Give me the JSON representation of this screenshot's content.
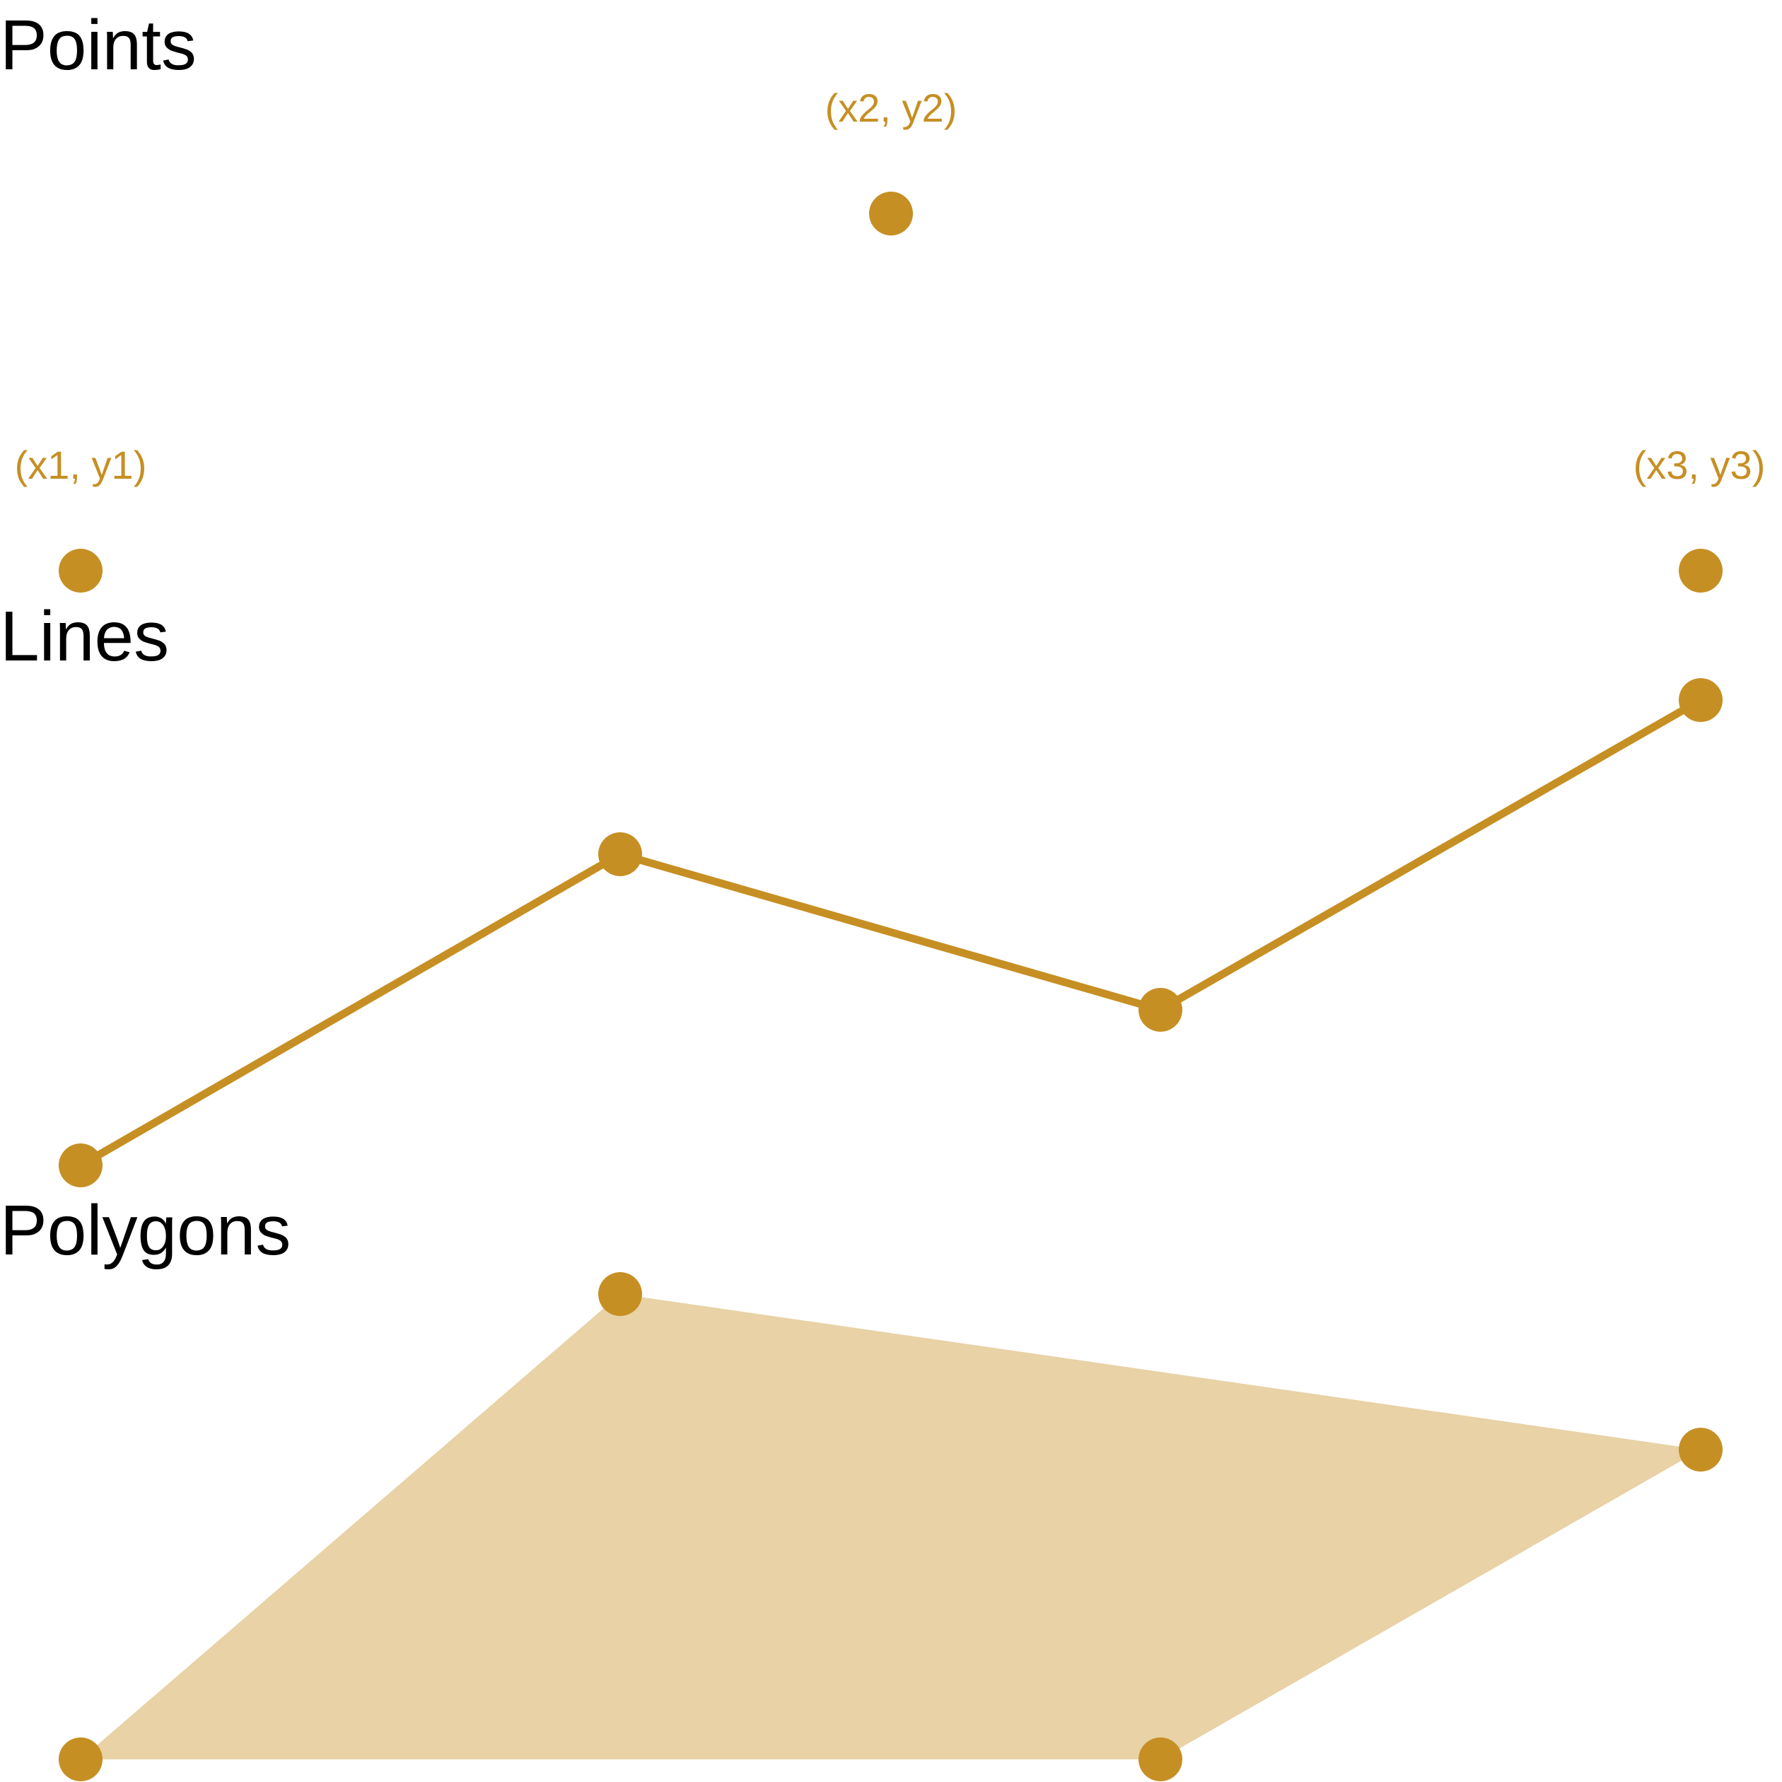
{
  "colors": {
    "accent": "#c68f24",
    "polygon_fill": "#e8d2a6",
    "title_text": "#000000"
  },
  "points_section": {
    "title": "Points",
    "points": [
      {
        "label": "(x1, y1)"
      },
      {
        "label": "(x2, y2)"
      },
      {
        "label": "(x3, y3)"
      }
    ]
  },
  "lines_section": {
    "title": "Lines"
  },
  "polygons_section": {
    "title": "Polygons"
  }
}
